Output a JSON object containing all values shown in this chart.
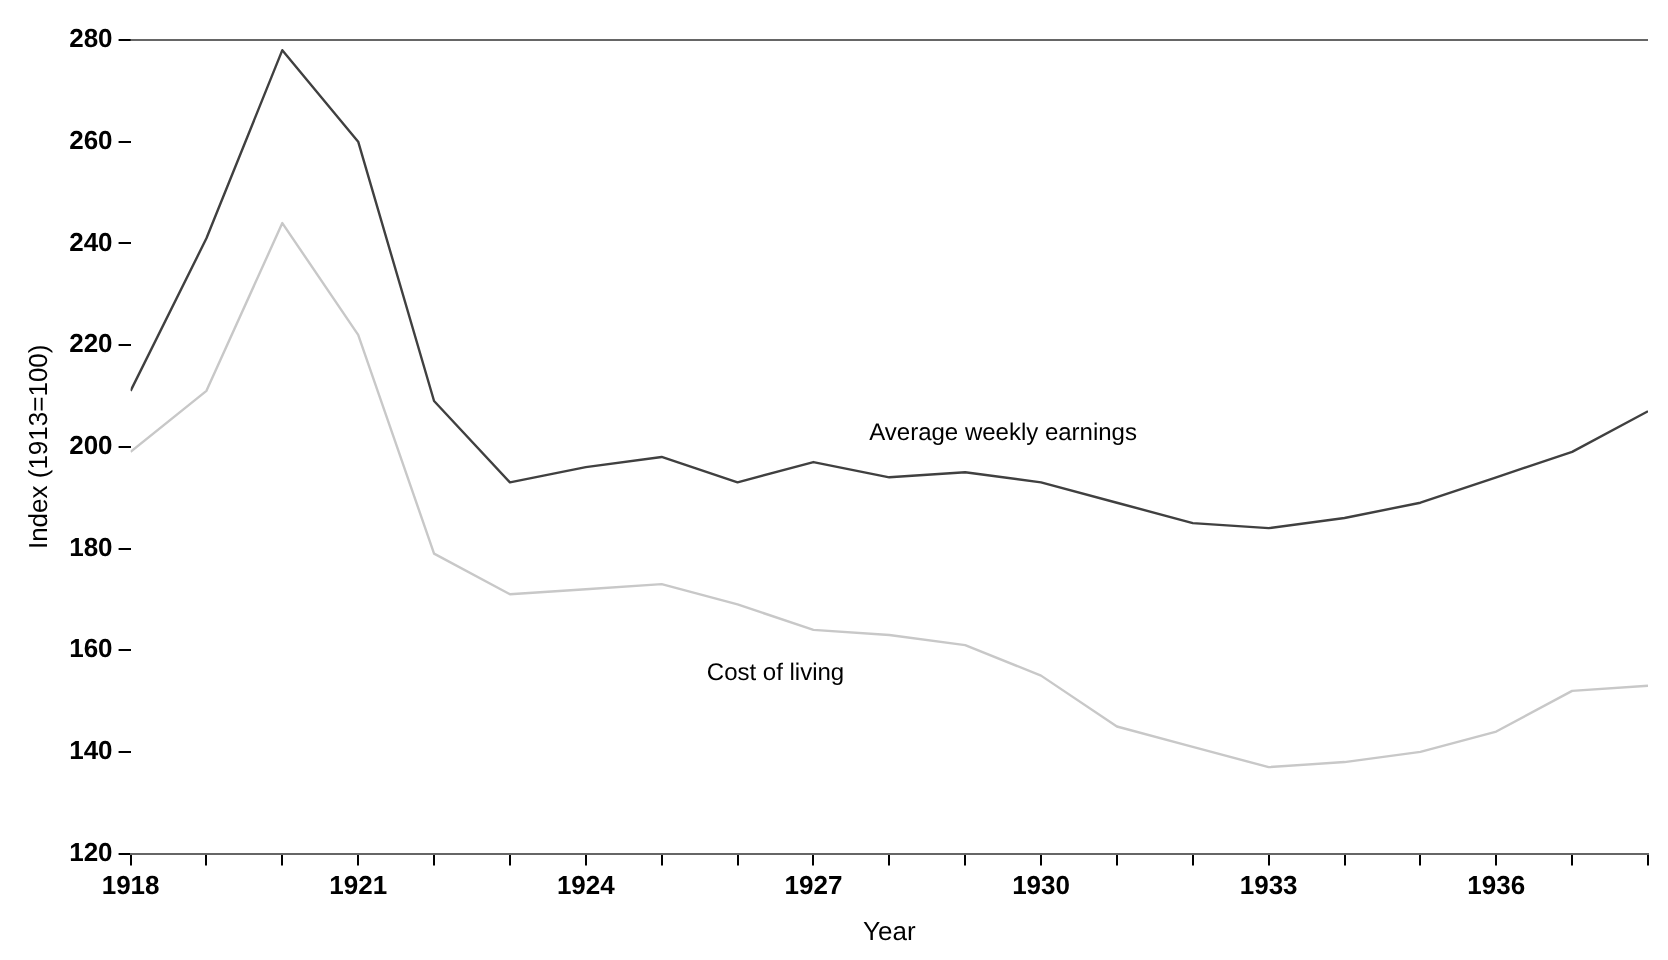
{
  "chart_data": {
    "type": "line",
    "xlabel": "Year",
    "ylabel": "Index (1913=100)",
    "x": [
      1918,
      1919,
      1920,
      1921,
      1922,
      1923,
      1924,
      1925,
      1926,
      1927,
      1928,
      1929,
      1930,
      1931,
      1932,
      1933,
      1934,
      1935,
      1936,
      1937,
      1938
    ],
    "series": [
      {
        "name": "Average weekly earnings",
        "color": "#404040",
        "values": [
          211,
          241,
          278,
          260,
          209,
          193,
          196,
          198,
          193,
          197,
          194,
          195,
          193,
          189,
          185,
          184,
          186,
          189,
          194,
          199,
          207
        ]
      },
      {
        "name": "Cost of living",
        "color": "#c8c8c8",
        "values": [
          199,
          211,
          244,
          222,
          179,
          171,
          172,
          173,
          169,
          164,
          163,
          161,
          155,
          145,
          141,
          137,
          138,
          140,
          144,
          152,
          153
        ]
      }
    ],
    "xlim": [
      1918,
      1938
    ],
    "xticks": [
      1918,
      {
        "value": 1919,
        "label": null
      },
      {
        "value": 1920,
        "label": null
      },
      1921,
      {
        "value": 1922,
        "label": null
      },
      {
        "value": 1923,
        "label": null
      },
      1924,
      {
        "value": 1925,
        "label": null
      },
      {
        "value": 1926,
        "label": null
      },
      1927,
      {
        "value": 1928,
        "label": null
      },
      {
        "value": 1929,
        "label": null
      },
      1930,
      {
        "value": 1931,
        "label": null
      },
      {
        "value": 1932,
        "label": null
      },
      1933,
      {
        "value": 1934,
        "label": null
      },
      {
        "value": 1935,
        "label": null
      },
      1936,
      {
        "value": 1937,
        "label": null
      },
      {
        "value": 1938,
        "label": null
      }
    ],
    "ylim": [
      120,
      280
    ],
    "yticks": [
      120,
      140,
      160,
      180,
      200,
      220,
      240,
      260,
      280
    ],
    "grid": false,
    "legend": false,
    "marker": "none",
    "line_style": "solid"
  }
}
